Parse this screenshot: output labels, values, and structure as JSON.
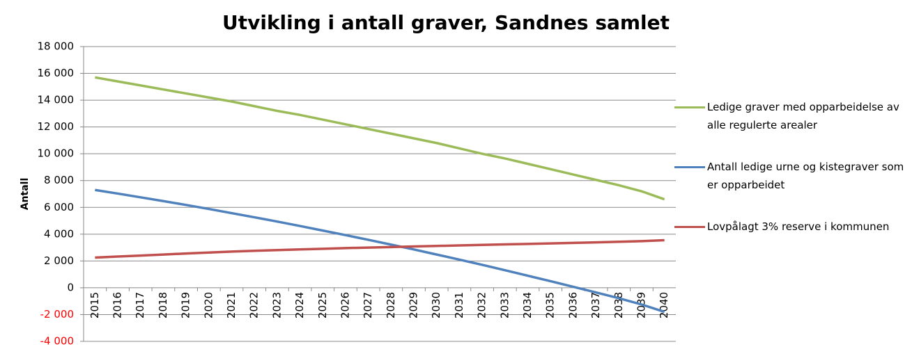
{
  "chart_data": {
    "type": "line",
    "title": "Utvikling i antall graver, Sandnes samlet",
    "y_label": "Antall",
    "categories": [
      "2015",
      "2016",
      "2017",
      "2018",
      "2019",
      "2020",
      "2021",
      "2022",
      "2023",
      "2024",
      "2025",
      "2026",
      "2027",
      "2028",
      "2029",
      "2030",
      "2031",
      "2032",
      "2033",
      "2034",
      "2035",
      "2036",
      "2037",
      "2038",
      "2039",
      "2040"
    ],
    "series": [
      {
        "name": "Ledige graver med opparbeidelse av alle regulerte arealer",
        "color": "#9bbb59",
        "values": [
          15700,
          15400,
          15100,
          14800,
          14500,
          14200,
          13900,
          13550,
          13200,
          12900,
          12550,
          12200,
          11850,
          11500,
          11150,
          10800,
          10400,
          10000,
          9650,
          9250,
          8850,
          8450,
          8050,
          7650,
          7200,
          6600
        ]
      },
      {
        "name": "Antall ledige urne og kistegraver som er opparbeidet",
        "color": "#4f81bd",
        "values": [
          7300,
          7030,
          6750,
          6470,
          6180,
          5880,
          5570,
          5260,
          4940,
          4610,
          4270,
          3930,
          3580,
          3220,
          2860,
          2480,
          2100,
          1710,
          1310,
          900,
          490,
          70,
          -350,
          -780,
          -1250,
          -1800
        ]
      },
      {
        "name": "Lovpålagt 3% reserve i kommunen",
        "color": "#c0504d",
        "values": [
          2250,
          2330,
          2400,
          2480,
          2560,
          2630,
          2700,
          2760,
          2810,
          2860,
          2910,
          2960,
          3000,
          3040,
          3080,
          3120,
          3160,
          3200,
          3240,
          3270,
          3310,
          3350,
          3390,
          3430,
          3480,
          3550
        ]
      }
    ],
    "ylim": [
      -4000,
      18000
    ],
    "yticks": [
      {
        "value": -4000,
        "label": "-4 000"
      },
      {
        "value": -2000,
        "label": "-2 000"
      },
      0,
      {
        "value": 2000,
        "label": "2 000"
      },
      {
        "value": 4000,
        "label": "4 000"
      },
      {
        "value": 6000,
        "label": "6 000"
      },
      {
        "value": 8000,
        "label": "8 000"
      },
      {
        "value": 10000,
        "label": "10 000"
      },
      {
        "value": 12000,
        "label": "12 000"
      },
      {
        "value": 14000,
        "label": "14 000"
      },
      {
        "value": 16000,
        "label": "16 000"
      },
      {
        "value": 18000,
        "label": "18 000"
      }
    ],
    "grid": true,
    "negative_tick_color": "#ff0000",
    "legend": "right"
  }
}
